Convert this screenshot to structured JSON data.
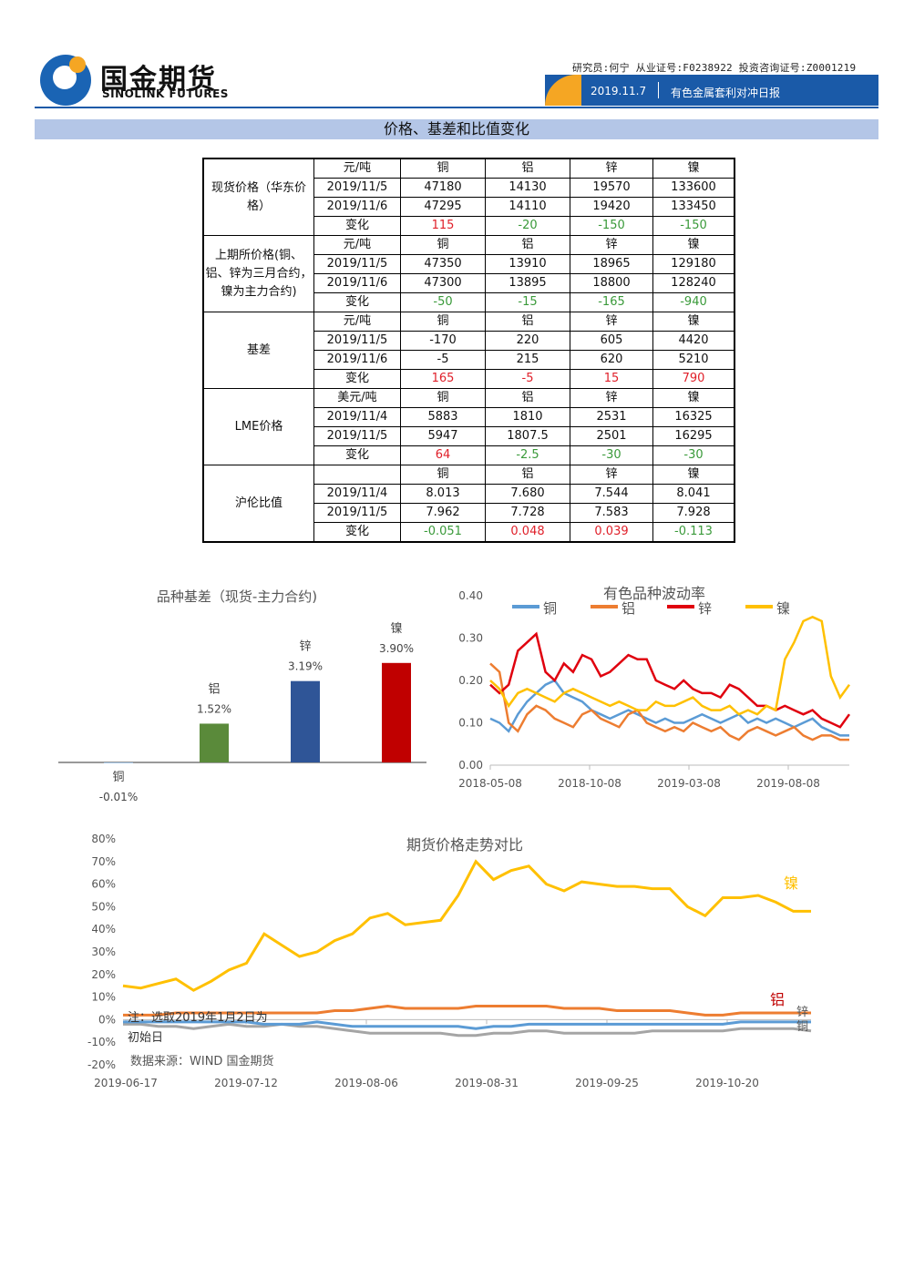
{
  "header": {
    "logo_cn": "国金期货",
    "logo_en": "SINOLINK FUTURES",
    "researcher": "研究员:何宁 从业证号:F0238922 投资咨询证号:Z0001219",
    "date": "2019.11.7",
    "report_title": "有色金属套利对冲日报"
  },
  "section_title": "价格、基差和比值变化",
  "table": {
    "groups": [
      {
        "name": "现货价格（华东价格）",
        "rows": [
          [
            "元/吨",
            "铜",
            "铝",
            "锌",
            "镍"
          ],
          [
            "2019/11/5",
            "47180",
            "14130",
            "19570",
            "133600"
          ],
          [
            "2019/11/6",
            "47295",
            "14110",
            "19420",
            "133450"
          ],
          [
            "变化",
            "115",
            "-20",
            "-150",
            "-150"
          ]
        ]
      },
      {
        "name": "上期所价格(铜、铝、锌为三月合约，镍为主力合约)",
        "rows": [
          [
            "元/吨",
            "铜",
            "铝",
            "锌",
            "镍"
          ],
          [
            "2019/11/5",
            "47350",
            "13910",
            "18965",
            "129180"
          ],
          [
            "2019/11/6",
            "47300",
            "13895",
            "18800",
            "128240"
          ],
          [
            "变化",
            "-50",
            "-15",
            "-165",
            "-940"
          ]
        ]
      },
      {
        "name": "基差",
        "rows": [
          [
            "元/吨",
            "铜",
            "铝",
            "锌",
            "镍"
          ],
          [
            "2019/11/5",
            "-170",
            "220",
            "605",
            "4420"
          ],
          [
            "2019/11/6",
            "-5",
            "215",
            "620",
            "5210"
          ],
          [
            "变化",
            "165",
            "-5",
            "15",
            "790"
          ]
        ]
      },
      {
        "name": "LME价格",
        "rows": [
          [
            "美元/吨",
            "铜",
            "铝",
            "锌",
            "镍"
          ],
          [
            "2019/11/4",
            "5883",
            "1810",
            "2531",
            "16325"
          ],
          [
            "2019/11/5",
            "5947",
            "1807.5",
            "2501",
            "16295"
          ],
          [
            "变化",
            "64",
            "-2.5",
            "-30",
            "-30"
          ]
        ]
      },
      {
        "name": "沪伦比值",
        "rows": [
          [
            "",
            "铜",
            "铝",
            "锌",
            "镍"
          ],
          [
            "2019/11/4",
            "8.013",
            "7.680",
            "7.544",
            "8.041"
          ],
          [
            "2019/11/5",
            "7.962",
            "7.728",
            "7.583",
            "7.928"
          ],
          [
            "变化",
            "-0.051",
            "0.048",
            "0.039",
            "-0.113"
          ]
        ]
      }
    ],
    "change_colors": [
      [
        "red",
        "green",
        "green",
        "green"
      ],
      [
        "green",
        "green",
        "green",
        "green"
      ],
      [
        "red",
        "red",
        "red",
        "red"
      ],
      [
        "red",
        "green",
        "green",
        "green"
      ],
      [
        "green",
        "red",
        "red",
        "green"
      ]
    ]
  },
  "chart_data": [
    {
      "type": "bar",
      "title": "品种基差（现货-主力合约)",
      "categories": [
        "铜",
        "铝",
        "锌",
        "镍"
      ],
      "values": [
        -0.01,
        1.52,
        3.19,
        3.9
      ],
      "value_labels": [
        "-0.01%",
        "1.52%",
        "3.19%",
        "3.90%"
      ],
      "colors": [
        "#4e8fd0",
        "#5a8a3a",
        "#2f5597",
        "#c00000"
      ]
    },
    {
      "type": "line",
      "title": "有色品种波动率",
      "x_ticks": [
        "2018-05-08",
        "2018-10-08",
        "2019-03-08",
        "2019-08-08"
      ],
      "y_ticks": [
        "0.00",
        "0.10",
        "0.20",
        "0.30",
        "0.40"
      ],
      "ylim": [
        0,
        0.4
      ],
      "legend_position": "top",
      "series": [
        {
          "name": "铜",
          "color": "#5b9bd5",
          "values": [
            0.11,
            0.1,
            0.08,
            0.12,
            0.15,
            0.17,
            0.19,
            0.2,
            0.17,
            0.16,
            0.15,
            0.13,
            0.12,
            0.11,
            0.12,
            0.13,
            0.12,
            0.11,
            0.1,
            0.11,
            0.1,
            0.1,
            0.11,
            0.12,
            0.11,
            0.1,
            0.11,
            0.12,
            0.1,
            0.11,
            0.1,
            0.11,
            0.1,
            0.09,
            0.1,
            0.11,
            0.09,
            0.08,
            0.07,
            0.07
          ]
        },
        {
          "name": "铝",
          "color": "#ed7d31",
          "values": [
            0.24,
            0.22,
            0.1,
            0.08,
            0.12,
            0.14,
            0.13,
            0.11,
            0.1,
            0.09,
            0.12,
            0.13,
            0.11,
            0.1,
            0.09,
            0.12,
            0.13,
            0.1,
            0.09,
            0.08,
            0.09,
            0.08,
            0.1,
            0.09,
            0.08,
            0.09,
            0.07,
            0.06,
            0.08,
            0.09,
            0.08,
            0.07,
            0.08,
            0.09,
            0.07,
            0.06,
            0.07,
            0.07,
            0.06,
            0.06
          ]
        },
        {
          "name": "锌",
          "color": "#e0000e",
          "values": [
            0.19,
            0.17,
            0.19,
            0.27,
            0.29,
            0.31,
            0.22,
            0.2,
            0.24,
            0.22,
            0.26,
            0.25,
            0.21,
            0.22,
            0.24,
            0.26,
            0.25,
            0.25,
            0.2,
            0.19,
            0.18,
            0.2,
            0.18,
            0.17,
            0.17,
            0.16,
            0.19,
            0.18,
            0.16,
            0.14,
            0.14,
            0.13,
            0.14,
            0.13,
            0.12,
            0.13,
            0.11,
            0.1,
            0.09,
            0.12
          ]
        },
        {
          "name": "镍",
          "color": "#ffc000",
          "values": [
            0.2,
            0.18,
            0.14,
            0.17,
            0.18,
            0.17,
            0.16,
            0.15,
            0.17,
            0.18,
            0.17,
            0.16,
            0.15,
            0.14,
            0.15,
            0.14,
            0.13,
            0.13,
            0.15,
            0.14,
            0.14,
            0.15,
            0.16,
            0.14,
            0.13,
            0.13,
            0.14,
            0.12,
            0.13,
            0.12,
            0.14,
            0.13,
            0.25,
            0.29,
            0.34,
            0.35,
            0.34,
            0.21,
            0.16,
            0.19
          ]
        }
      ]
    },
    {
      "type": "line",
      "title": "期货价格走势对比",
      "x_ticks": [
        "2019-06-17",
        "2019-07-12",
        "2019-08-06",
        "2019-08-31",
        "2019-09-25",
        "2019-10-20"
      ],
      "y_ticks": [
        "80%",
        "70%",
        "60%",
        "50%",
        "40%",
        "30%",
        "20%",
        "10%",
        "0%",
        "-10%",
        "-20%"
      ],
      "ylim": [
        -20,
        80
      ],
      "series": [
        {
          "name": "镍",
          "color": "#ffc000",
          "values": [
            15,
            14,
            16,
            18,
            13,
            17,
            22,
            25,
            38,
            33,
            28,
            30,
            35,
            38,
            45,
            47,
            42,
            43,
            44,
            55,
            70,
            62,
            66,
            68,
            60,
            57,
            61,
            60,
            59,
            59,
            58,
            58,
            50,
            46,
            54,
            54,
            55,
            52,
            48,
            48
          ]
        },
        {
          "name": "铝",
          "color": "#ed7d31",
          "values": [
            2,
            2,
            2,
            3,
            3,
            3,
            3,
            3,
            3,
            3,
            3,
            3,
            4,
            4,
            5,
            6,
            5,
            5,
            5,
            5,
            6,
            6,
            6,
            6,
            6,
            5,
            5,
            5,
            4,
            4,
            4,
            4,
            3,
            2,
            2,
            3,
            3,
            3,
            3,
            3
          ]
        },
        {
          "name": "锌",
          "color": "#a5a5a5",
          "values": [
            -2,
            -2,
            -3,
            -3,
            -4,
            -3,
            -2,
            -3,
            -3,
            -2,
            -3,
            -3,
            -4,
            -5,
            -6,
            -6,
            -6,
            -6,
            -6,
            -7,
            -7,
            -6,
            -6,
            -5,
            -5,
            -6,
            -6,
            -6,
            -6,
            -6,
            -5,
            -5,
            -5,
            -5,
            -5,
            -4,
            -4,
            -4,
            -4,
            -5
          ]
        },
        {
          "name": "铜",
          "color": "#5b9bd5",
          "values": [
            -1,
            -1,
            -1,
            -1,
            -1,
            -1,
            -1,
            -1,
            -2,
            -2,
            -2,
            -1,
            -2,
            -3,
            -3,
            -3,
            -3,
            -3,
            -3,
            -3,
            -4,
            -3,
            -3,
            -2,
            -2,
            -2,
            -2,
            -2,
            -2,
            -2,
            -2,
            -2,
            -2,
            -2,
            -2,
            -1,
            -1,
            -1,
            -1,
            -1
          ]
        }
      ],
      "note": "注：选取2019年1月2日为初始日",
      "source": "数据来源：WIND 国金期货"
    }
  ]
}
